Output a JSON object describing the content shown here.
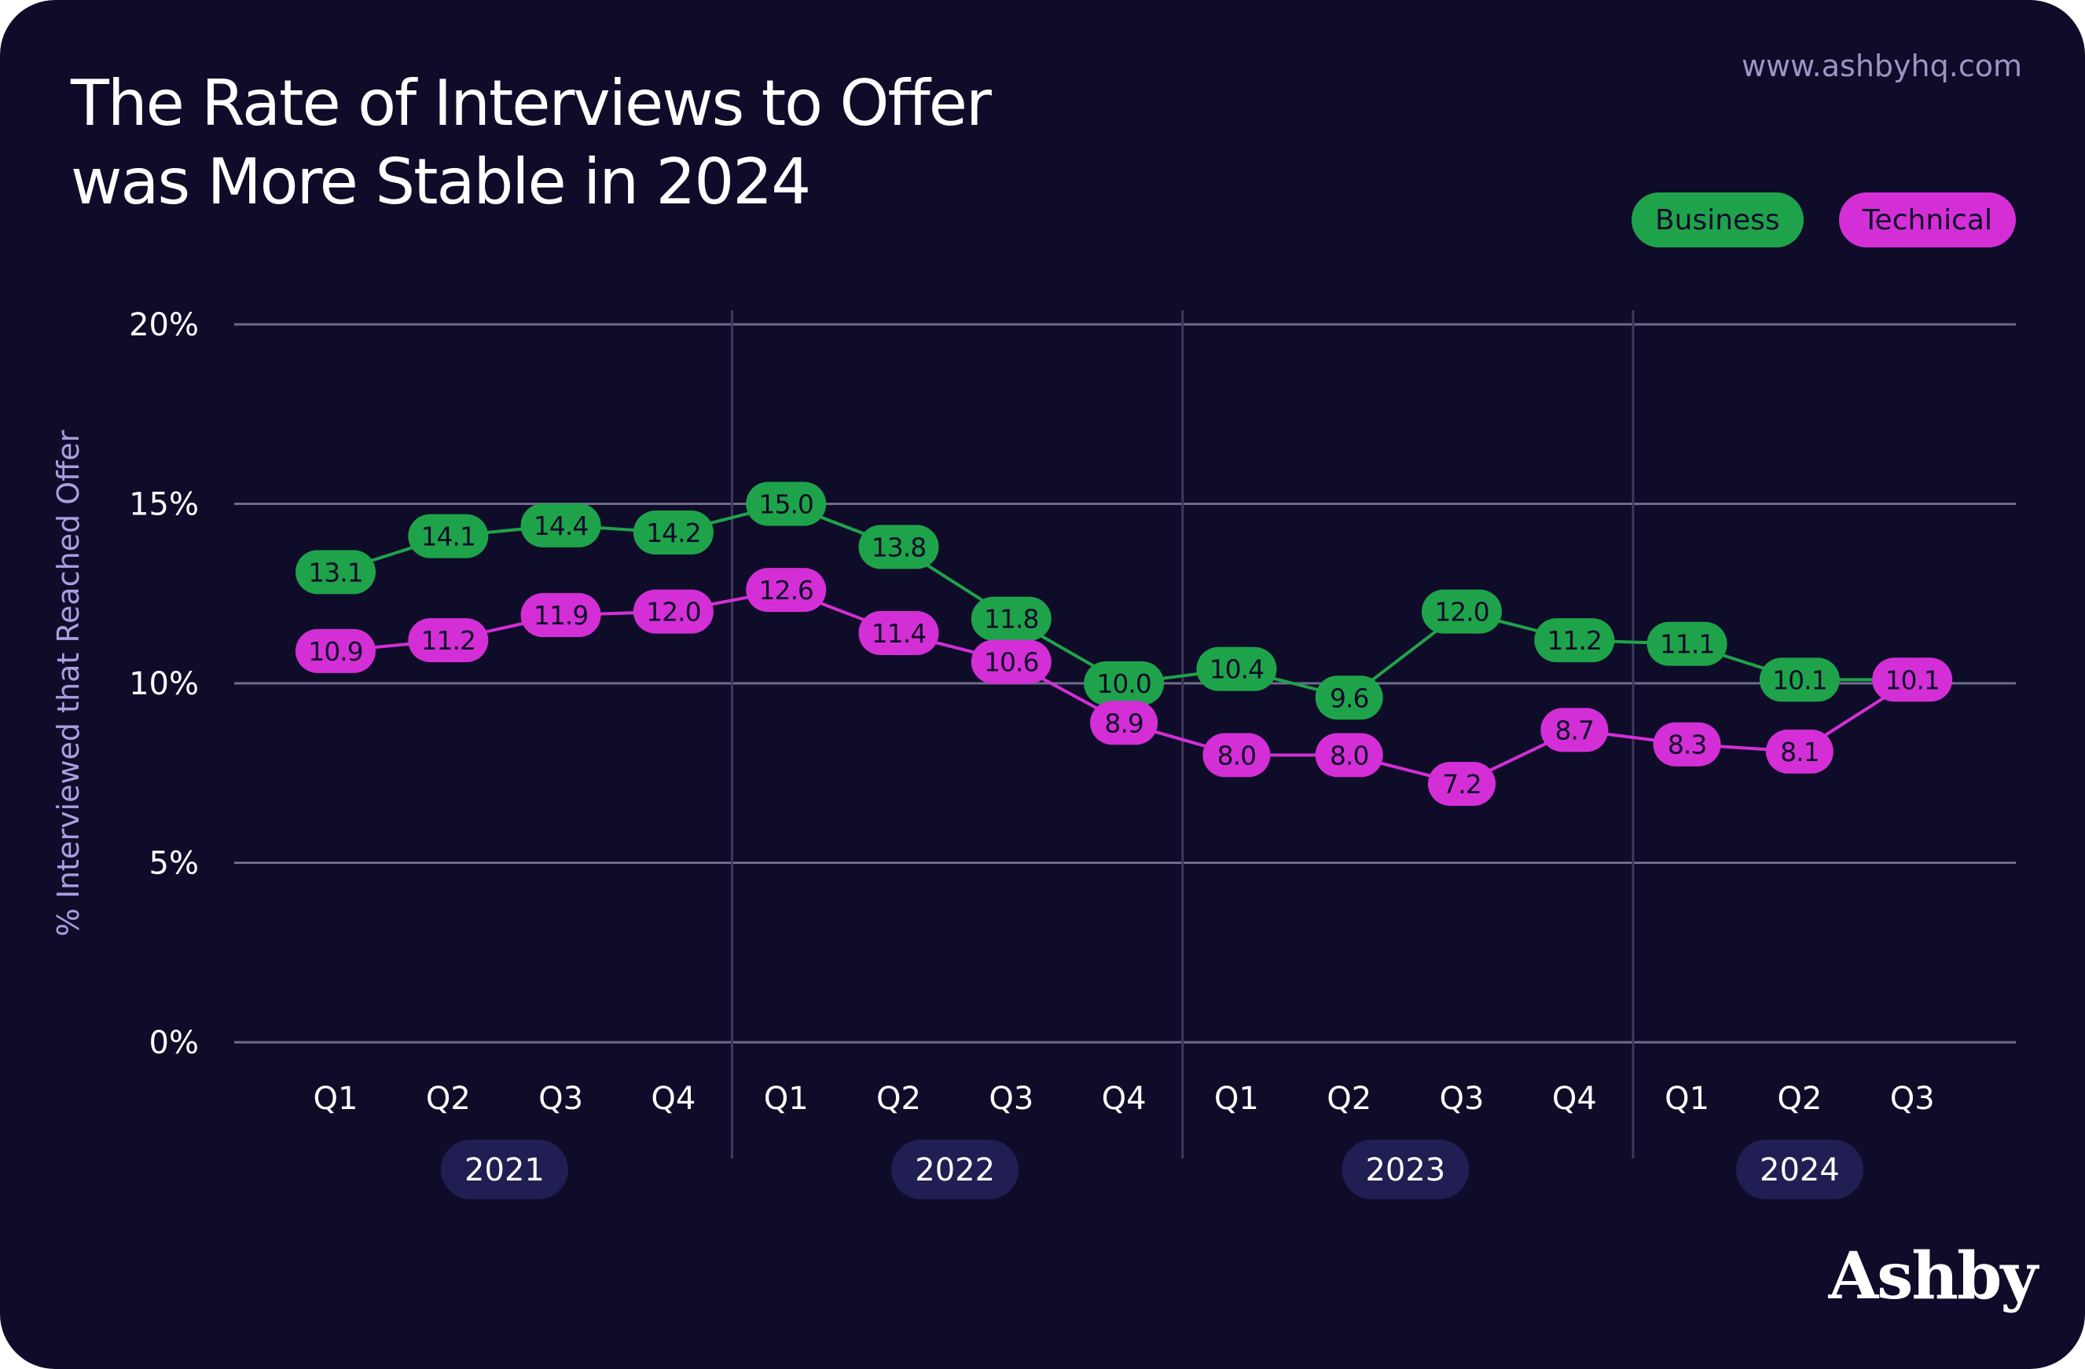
{
  "header": {
    "title_line1": "The Rate of Interviews to Offer",
    "title_line2": "was More Stable in 2024",
    "website": "www.ashbyhq.com",
    "brand": "Ashby"
  },
  "colors": {
    "background": "#0e0c29",
    "business": "#1fa34a",
    "technical": "#d42fd6",
    "year_pill": "#201e52",
    "grid": "#6f6b8a"
  },
  "chart_data": {
    "type": "line",
    "title": "The Rate of Interviews to Offer was More Stable in 2024",
    "ylabel": "% Interviewed that Reached Offer",
    "xlabel": "",
    "ylim": [
      0,
      20
    ],
    "yticks": [
      "0%",
      "5%",
      "10%",
      "15%",
      "20%"
    ],
    "ytick_values": [
      0,
      5,
      10,
      15,
      20
    ],
    "grid": true,
    "legend_position": "top-right",
    "categories": [
      "Q1",
      "Q2",
      "Q3",
      "Q4",
      "Q1",
      "Q2",
      "Q3",
      "Q4",
      "Q1",
      "Q2",
      "Q3",
      "Q4",
      "Q1",
      "Q2",
      "Q3"
    ],
    "years": [
      {
        "label": "2021",
        "quarters": 4
      },
      {
        "label": "2022",
        "quarters": 4
      },
      {
        "label": "2023",
        "quarters": 4
      },
      {
        "label": "2024",
        "quarters": 3
      }
    ],
    "series": [
      {
        "name": "Business",
        "color": "#1fa34a",
        "values": [
          13.1,
          14.1,
          14.4,
          14.2,
          15.0,
          13.8,
          11.8,
          10.0,
          10.4,
          9.6,
          12.0,
          11.2,
          11.1,
          10.1,
          10.1
        ],
        "labels": [
          "13.1",
          "14.1",
          "14.4",
          "14.2",
          "15.0",
          "13.8",
          "11.8",
          "10.0",
          "10.4",
          "9.6",
          "12.0",
          "11.2",
          "11.1",
          "10.1",
          null
        ]
      },
      {
        "name": "Technical",
        "color": "#d42fd6",
        "values": [
          10.9,
          11.2,
          11.9,
          12.0,
          12.6,
          11.4,
          10.6,
          8.9,
          8.0,
          8.0,
          7.2,
          8.7,
          8.3,
          8.1,
          10.1
        ],
        "labels": [
          "10.9",
          "11.2",
          "11.9",
          "12.0",
          "12.6",
          "11.4",
          "10.6",
          "8.9",
          "8.0",
          "8.0",
          "7.2",
          "8.7",
          "8.3",
          "8.1",
          "10.1"
        ]
      }
    ]
  }
}
